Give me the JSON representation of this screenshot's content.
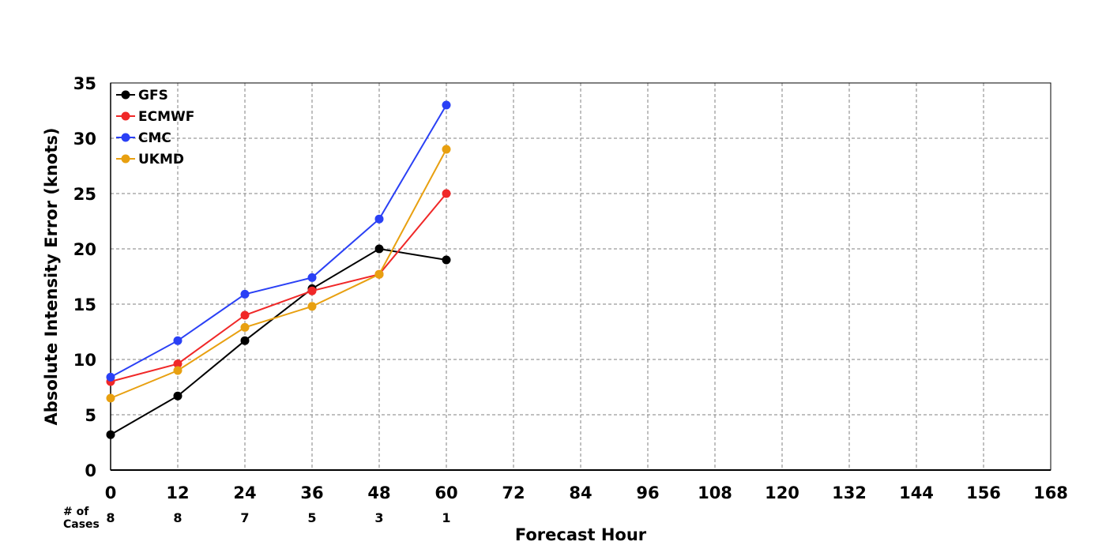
{
  "chart_data": {
    "type": "line",
    "title": "",
    "xlabel": "Forecast Hour",
    "ylabel": "Absolute Intensity Error (knots)",
    "xlim": [
      0,
      168
    ],
    "ylim": [
      0,
      35
    ],
    "x_ticks": [
      0,
      12,
      24,
      36,
      48,
      60,
      72,
      84,
      96,
      108,
      120,
      132,
      144,
      156,
      168
    ],
    "y_ticks": [
      0,
      5,
      10,
      15,
      20,
      25,
      30,
      35
    ],
    "grid": true,
    "legend_position": "top-left",
    "x": [
      0,
      12,
      24,
      36,
      48,
      60
    ],
    "series": [
      {
        "name": "GFS",
        "color": "#000000",
        "values": [
          3.2,
          6.7,
          11.7,
          16.4,
          20.0,
          19.0
        ]
      },
      {
        "name": "ECMWF",
        "color": "#f02828",
        "values": [
          8.0,
          9.6,
          14.0,
          16.2,
          17.7,
          25.0
        ]
      },
      {
        "name": "CMC",
        "color": "#2a40f5",
        "values": [
          8.4,
          11.7,
          15.9,
          17.4,
          22.7,
          33.0
        ]
      },
      {
        "name": "UKMD",
        "color": "#e8a010",
        "values": [
          6.5,
          9.0,
          12.9,
          14.8,
          17.7,
          29.0
        ]
      }
    ],
    "cases": {
      "label": "# of Cases",
      "x": [
        0,
        12,
        24,
        36,
        48,
        60
      ],
      "values": [
        "8",
        "8",
        "7",
        "5",
        "3",
        "1"
      ]
    }
  }
}
